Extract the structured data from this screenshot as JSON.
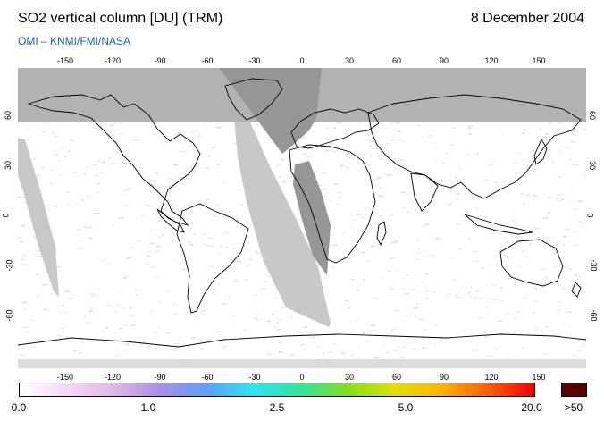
{
  "header": {
    "title": "SO2 vertical column [DU] (TRM)",
    "date": "8 December 2004",
    "subtitle": "OMI  –  KNMI/FMI/NASA"
  },
  "map": {
    "lon_ticks": [
      "-150",
      "-120",
      "-90",
      "-60",
      "-30",
      "0",
      "30",
      "60",
      "90",
      "120",
      "150"
    ],
    "lat_ticks": [
      "60",
      "30",
      "0",
      "-30",
      "-60"
    ],
    "colors": {
      "no_data": "#c8c8c8",
      "night": "#969696",
      "outline": "#000000"
    }
  },
  "colorbar": {
    "labels": [
      "0.0",
      "1.0",
      "2.5",
      "5.0",
      "20.0"
    ],
    "overflow_label": ">50",
    "overflow_color": "#5a0000",
    "gradient": [
      "#ffffff",
      "#f6d9f6",
      "#e3b5ea",
      "#a98fe8",
      "#5aa0ff",
      "#28e6f0",
      "#2ee69c",
      "#80e01a",
      "#e0e000",
      "#ffb400",
      "#ff6000",
      "#f00000"
    ]
  }
}
